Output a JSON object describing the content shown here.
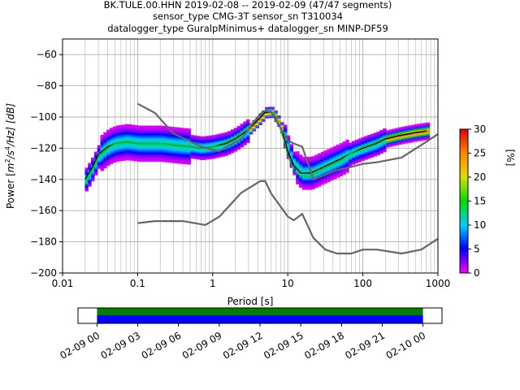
{
  "title_lines": [
    "BK.TULE.00.HHN   2019-02-08 -- 2019-02-09  (47/47 segments)",
    "sensor_type CMG-3T sensor_sn T310034",
    "datalogger_type GuralpMinimus+ datalogger_sn MINP-DF59"
  ],
  "chart_data": [
    {
      "type": "heatmap",
      "xlabel": "Period [s]",
      "ylabel": "Power [m²/s⁴/Hz] [dB]",
      "ylabel_parts": {
        "pre": "Power [",
        "m": "m",
        "e2": "2",
        "mid": "/s",
        "e4": "4",
        "tail": "/Hz] [dB]"
      },
      "x_scale": "log",
      "xlim": [
        0.01,
        1000
      ],
      "ylim": [
        -200,
        -50
      ],
      "x_ticks": [
        0.01,
        0.1,
        1,
        10,
        100,
        1000
      ],
      "x_tick_labels": [
        "0.01",
        "0.1",
        "1",
        "10",
        "100",
        "1000"
      ],
      "y_ticks": [
        -200,
        -180,
        -160,
        -140,
        -120,
        -100,
        -80,
        -60
      ],
      "y_tick_labels": [
        "−200",
        "−180",
        "−160",
        "−140",
        "−120",
        "−100",
        "−80",
        "−60"
      ],
      "grid": true,
      "colorbar": {
        "label": "[%]",
        "range": [
          0,
          30
        ],
        "ticks": [
          0,
          5,
          10,
          15,
          20,
          25,
          30
        ],
        "tick_labels": [
          "0",
          "5",
          "10",
          "15",
          "20",
          "25",
          "30"
        ]
      },
      "series": [
        {
          "role": "mean",
          "color": "#000000",
          "x": [
            0.02,
            0.025,
            0.03,
            0.04,
            0.05,
            0.07,
            0.1,
            0.15,
            0.2,
            0.3,
            0.5,
            0.7,
            1,
            1.5,
            2,
            3,
            4,
            5,
            6,
            7,
            8,
            9,
            10,
            12,
            15,
            20,
            30,
            50,
            70,
            100,
            150,
            200,
            300,
            500,
            700
          ],
          "y": [
            -140,
            -132,
            -124,
            -119,
            -117,
            -116,
            -117,
            -117,
            -117,
            -118,
            -119,
            -120,
            -119,
            -117,
            -114,
            -108,
            -102,
            -97,
            -97,
            -101,
            -107,
            -114,
            -122,
            -131,
            -136,
            -136,
            -132,
            -127,
            -123,
            -120,
            -117,
            -114,
            -112,
            -110,
            -109
          ]
        },
        {
          "role": "mode",
          "color": "#00cc00",
          "x": [
            0.02,
            0.025,
            0.03,
            0.04,
            0.05,
            0.07,
            0.1,
            0.15,
            0.2,
            0.3,
            0.5,
            0.7,
            1,
            1.5,
            2,
            3,
            4,
            5,
            6,
            7,
            8,
            9,
            10,
            12,
            15,
            20,
            30,
            50,
            70,
            100,
            150,
            200,
            300,
            500,
            700
          ],
          "y": [
            -143,
            -134,
            -126,
            -120,
            -117,
            -116,
            -117,
            -117,
            -117,
            -118,
            -119,
            -120,
            -119,
            -116,
            -113,
            -106,
            -100,
            -96,
            -96,
            -100,
            -108,
            -116,
            -125,
            -134,
            -138,
            -138,
            -133,
            -128,
            -123,
            -119,
            -116,
            -113,
            -111,
            -108,
            -108
          ]
        },
        {
          "role": "nhnm",
          "color": "#666666",
          "x": [
            0.1,
            0.17,
            0.3,
            0.4,
            0.7,
            1.2,
            2.4,
            4.3,
            5,
            6,
            10,
            12,
            15.6,
            21.9,
            31.6,
            45,
            70,
            101,
            154,
            328,
            600,
            1000
          ],
          "y": [
            -91.5,
            -97.4,
            -110.5,
            -113.5,
            -119,
            -122,
            -114,
            -98,
            -96,
            -97,
            -115,
            -117,
            -119,
            -140,
            -137,
            -134,
            -132,
            -130,
            -129,
            -126,
            -118,
            -111
          ]
        },
        {
          "role": "nlnm",
          "color": "#666666",
          "x": [
            0.1,
            0.17,
            0.4,
            0.8,
            1.24,
            2.4,
            4.3,
            5,
            6,
            10,
            12,
            15.6,
            21.9,
            31.6,
            45,
            70,
            101,
            154,
            328,
            600,
            1000
          ],
          "y": [
            -168,
            -166.7,
            -166.7,
            -169.2,
            -163.7,
            -148.6,
            -141.1,
            -141.1,
            -149,
            -163.8,
            -166.2,
            -162.1,
            -177.5,
            -185,
            -187.5,
            -187.5,
            -185,
            -185,
            -187.5,
            -185,
            -178
          ]
        }
      ]
    },
    {
      "type": "bar",
      "role": "data_coverage",
      "x_tick_labels": [
        "02-09 00",
        "02-09 03",
        "02-09 06",
        "02-09 09",
        "02-09 12",
        "02-09 15",
        "02-09 18",
        "02-09 21",
        "02-10 00"
      ],
      "x_range_hours": [
        -1.4,
        25.4
      ],
      "coverage_hours": [
        0,
        24
      ],
      "colors": {
        "top": "#007f00",
        "bottom": "#0000ff"
      }
    }
  ]
}
